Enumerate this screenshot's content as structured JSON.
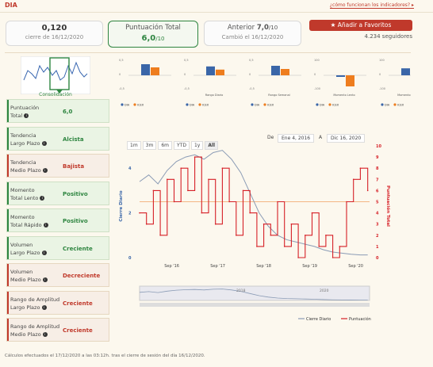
{
  "header": {
    "ticker": "DIA",
    "help_link": "¿cómo funcionan los indicadores? ▸"
  },
  "cards": {
    "price": {
      "value": "0,120",
      "sub": "cierre de 16/12/2020"
    },
    "score": {
      "title": "Puntuación Total",
      "value": "6,0",
      "denom": "/10"
    },
    "previous": {
      "title_prefix": "Anterior ",
      "value": "7,0",
      "denom": "/10",
      "sub": "Cambió el 16/12/2020"
    }
  },
  "favorites": {
    "button": "★ Añadir a Favoritos",
    "followers": "4.234 seguidores"
  },
  "consolidation_label": "Consolidación",
  "mini_charts": [
    {
      "ticks": [
        "0,5",
        "0",
        "-0,5"
      ],
      "caption": "",
      "dia": 0.35,
      "icex": 0.25
    },
    {
      "ticks": [
        "0,5",
        "0",
        "-0,5"
      ],
      "caption": "Rango Diario",
      "dia": 0.28,
      "icex": 0.18
    },
    {
      "ticks": [
        "0,5",
        "0",
        "-0,5"
      ],
      "caption": "Rango Semanal",
      "dia": 0.3,
      "icex": 0.2
    },
    {
      "ticks": [
        "100",
        "0",
        "-100"
      ],
      "caption": "Momento Lento",
      "dia": -0.05,
      "icex": -0.35
    },
    {
      "ticks": [
        "100",
        "0",
        "-100"
      ],
      "caption": "Momento Rápido",
      "dia": 0.22,
      "icex": 0.1
    }
  ],
  "legend": {
    "dia": "DIA",
    "icex": "ICEX"
  },
  "indicators": [
    {
      "label1": "Puntuación",
      "label2": "Total",
      "value": "6,0",
      "color": "green"
    },
    {
      "label1": "Tendencia",
      "label2": "Largo Plazo",
      "value": "Alcista",
      "color": "green"
    },
    {
      "label1": "Tendencia",
      "label2": "Medio Plazo",
      "value": "Bajista",
      "color": "red"
    },
    {
      "label1": "Momento",
      "label2": "Total Lento",
      "value": "Positivo",
      "color": "green"
    },
    {
      "label1": "Momento",
      "label2": "Total Rápido",
      "value": "Positivo",
      "color": "green"
    },
    {
      "label1": "Volumen",
      "label2": "Largo Plazo",
      "value": "Creciente",
      "color": "green"
    },
    {
      "label1": "Volumen",
      "label2": "Medio Plazo",
      "value": "Decreciente",
      "color": "red"
    },
    {
      "label1": "Rango de Amplitud",
      "label2": "Largo Plazo",
      "value": "Creciente",
      "color": "red"
    },
    {
      "label1": "Rango de Amplitud",
      "label2": "Medio Plazo",
      "value": "Creciente",
      "color": "red"
    }
  ],
  "range_buttons": [
    "1m",
    "3m",
    "6m",
    "YTD",
    "1y",
    "All"
  ],
  "range_selected": "All",
  "date_from_label": "De",
  "date_from": "Ene 4, 2016",
  "date_to_label": "A",
  "date_to": "Dic 16, 2020",
  "chart_data": {
    "type": "line",
    "ylabel_left": "Cierre Diario",
    "ylabel_right": "Puntuación Total",
    "y_ticks_left": [
      "4",
      "2",
      "0"
    ],
    "y_ticks_right": [
      "10",
      "9",
      "8",
      "7",
      "6",
      "5",
      "4",
      "3",
      "2",
      "1",
      "0"
    ],
    "x_ticks": [
      "Sep '16",
      "Sep '17",
      "Sep '18",
      "Sep '19",
      "Sep '20"
    ],
    "navigator_ticks": [
      "2018",
      "2020"
    ],
    "legend": [
      "Cierre Diario",
      "Puntuación"
    ],
    "reference_line_right": 5,
    "series": [
      {
        "name": "Cierre Diario",
        "color": "#8a9bb5",
        "x": [
          2016.0,
          2016.2,
          2016.4,
          2016.6,
          2016.8,
          2017.0,
          2017.2,
          2017.4,
          2017.6,
          2017.8,
          2018.0,
          2018.2,
          2018.4,
          2018.6,
          2018.8,
          2019.0,
          2019.2,
          2019.4,
          2019.6,
          2019.8,
          2020.0,
          2020.2,
          2020.4,
          2020.6,
          2020.8,
          2020.96
        ],
        "values": [
          3.4,
          3.7,
          3.3,
          3.9,
          4.3,
          4.5,
          4.6,
          4.4,
          4.7,
          4.8,
          4.4,
          3.8,
          2.9,
          2.0,
          1.4,
          1.0,
          0.8,
          0.7,
          0.6,
          0.5,
          0.35,
          0.25,
          0.2,
          0.15,
          0.12,
          0.12
        ]
      },
      {
        "name": "Puntuación",
        "color": "#d62027",
        "x": [
          2016.0,
          2016.15,
          2016.3,
          2016.45,
          2016.6,
          2016.75,
          2016.9,
          2017.05,
          2017.2,
          2017.35,
          2017.5,
          2017.65,
          2017.8,
          2017.95,
          2018.1,
          2018.25,
          2018.4,
          2018.55,
          2018.7,
          2018.85,
          2019.0,
          2019.15,
          2019.3,
          2019.45,
          2019.6,
          2019.75,
          2019.9,
          2020.05,
          2020.2,
          2020.35,
          2020.5,
          2020.65,
          2020.8,
          2020.96
        ],
        "values": [
          4,
          3,
          6,
          2,
          7,
          5,
          8,
          6,
          9,
          4,
          7,
          3,
          8,
          5,
          2,
          6,
          4,
          1,
          3,
          2,
          5,
          1,
          3,
          0,
          2,
          4,
          1,
          2,
          0,
          1,
          5,
          7,
          8,
          6
        ]
      }
    ]
  },
  "footer": "Cálculos efectuados el 17/12/2020 a las 03:12h. tras el cierre de sesión del día 16/12/2020."
}
